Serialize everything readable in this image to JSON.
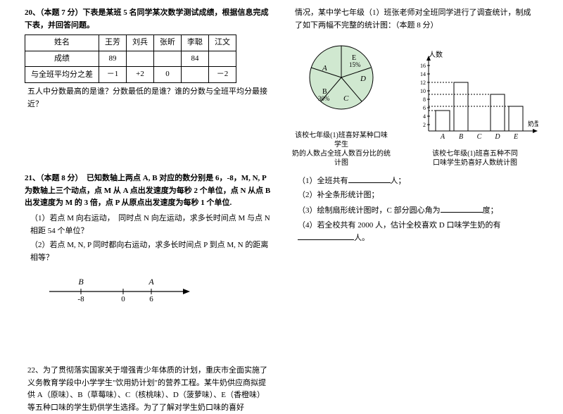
{
  "q20": {
    "title": "20、（本题 7 分）下表是某班 5 名同学某次数学测试成绩，根据信息完成下表，并回答问题。",
    "table": {
      "headers": [
        "姓名",
        "王芳",
        "刘兵",
        "张昕",
        "李聪",
        "江文"
      ],
      "row1_label": "成绩",
      "row1": [
        "89",
        "",
        "",
        "84",
        ""
      ],
      "row2_label": "与全班平均分之差",
      "row2": [
        "－1",
        "+2",
        "0",
        "",
        "－2"
      ]
    },
    "question": "五人中分数最高的是谁？分数最低的是谁？谁的分数与全班平均分最接近？"
  },
  "q21": {
    "title": "21、（本题 8 分）　已知数轴上两点 A, B 对应的数分别是 6，-8，M, N, P 为数轴上三个动点，点 M 从 A 点出发速度为每秒 2 个单位，点 N 从点 B 出发速度为 M 的 3 倍，点 P 从原点出发速度为每秒 1 个单位.",
    "sub1": "（1）若点 M 向右运动，　同时点 N 向左运动，求多长时间点 M 与点 N 相距 54 个单位？",
    "sub2": "（2）若点 M, N, P 同时都向右运动，求多长时间点 P 到点 M, N 的距离相等？",
    "line": {
      "B_label": "B",
      "A_label": "A",
      "B_val": "-8",
      "zero": "0",
      "A_val": "6"
    }
  },
  "q22": {
    "title": "22、为了贯彻落实国家关于增强青少年体质的计划，重庆市全面实施了义务教育学段中小学学生\"饮用奶计划\"的营养工程。某牛奶供应商拟提供 A（原味）、B（草莓味）、C（核桃味）、D（菠萝味）、E（香橙味）等五种口味的学生奶供学生选择。为了了解对学生奶口味的喜好",
    "cont": "情况，某中学七年级（1）班张老师对全班同学进行了调查统计，制成了如下两幅不完整的统计图：（本题 8 分）",
    "pie": {
      "labels": {
        "A": "A",
        "B": "B\n30%",
        "C": "C",
        "D": "D",
        "E": "E\n15%"
      },
      "caption": "该校七年级(1)班喜好某种口味学生\n奶的人数占全班人数百分比的统计图"
    },
    "bar": {
      "y_label": "人数",
      "x_label": "奶型",
      "y_ticks": [
        "16",
        "14",
        "12",
        "10",
        "8",
        "6",
        "4",
        "2"
      ],
      "x_ticks": [
        "A",
        "B",
        "C",
        "D",
        "E"
      ],
      "values": [
        5,
        12,
        0,
        9,
        6
      ],
      "caption": "该校七年级(1)班喜五种不同\n口味学生奶喜好人数统计图"
    },
    "sub1_a": "（1）全班共有",
    "sub1_b": "人；",
    "sub2": "（2）补全条形统计图；",
    "sub3_a": "（3）绘制扇形统计图时，C 部分圆心角为",
    "sub3_b": "度；",
    "sub4_a": "（4）若全校共有 2000 人，估计全校喜欢 D 口味学生奶的有",
    "sub4_b": "人。"
  },
  "colors": {
    "line": "#000000",
    "pie_fill": "#d0e8d0"
  }
}
